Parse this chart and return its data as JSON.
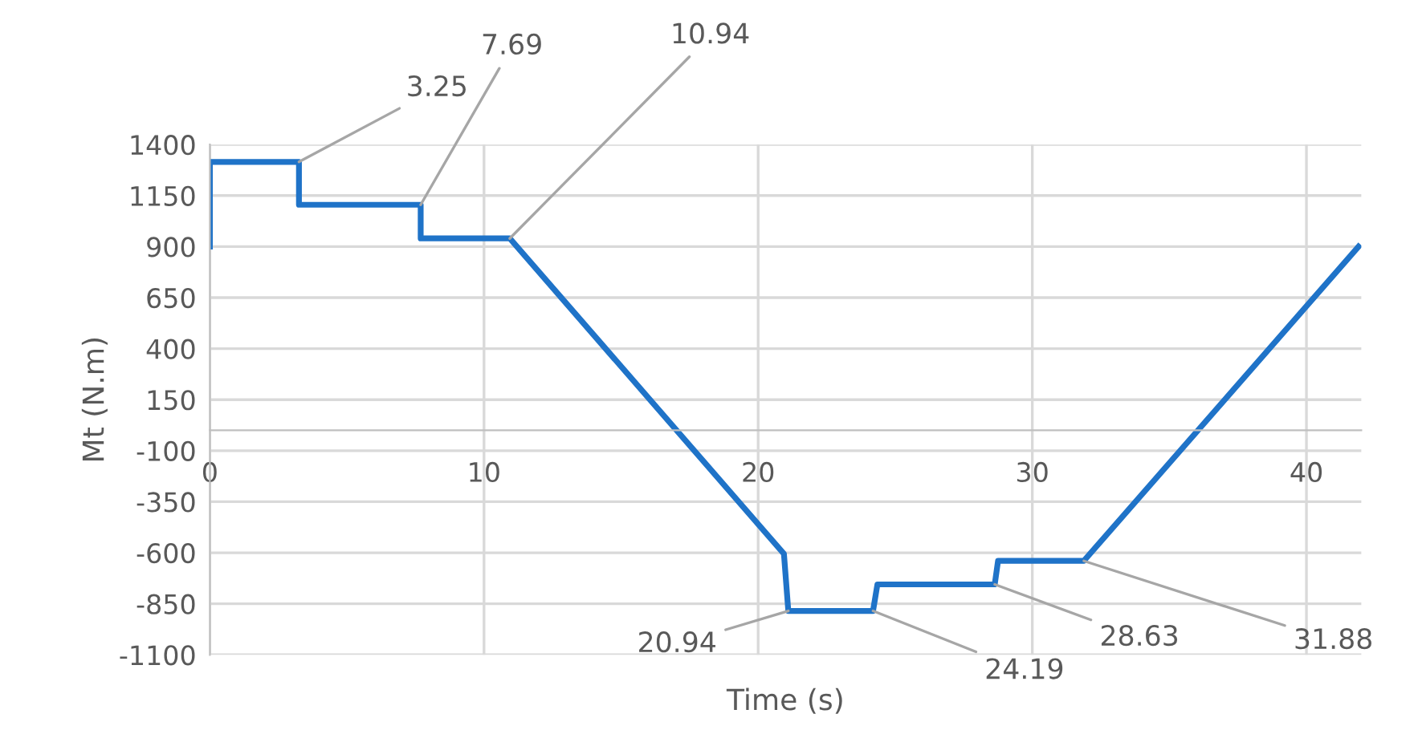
{
  "chart_data": {
    "type": "line",
    "xlabel": "Time (s)",
    "ylabel": "Mt (N.m)",
    "series": [
      {
        "color": "#1f73c8",
        "x": [
          0,
          0,
          3.25,
          3.25,
          7.69,
          7.69,
          10.94,
          20.94,
          21.1,
          24.19,
          24.35,
          28.63,
          28.75,
          31.88,
          41.9
        ],
        "values": [
          900,
          1315,
          1315,
          1105,
          1105,
          940,
          940,
          -605,
          -885,
          -885,
          -755,
          -755,
          -640,
          -640,
          900
        ]
      }
    ],
    "annotations": [
      {
        "text": "3.25",
        "x": 3.25,
        "y": 1315
      },
      {
        "text": "7.69",
        "x": 7.69,
        "y": 1105
      },
      {
        "text": "10.94",
        "x": 10.94,
        "y": 940
      },
      {
        "text": "20.94",
        "x": 21.1,
        "y": -885
      },
      {
        "text": "24.19",
        "x": 24.19,
        "y": -885
      },
      {
        "text": "28.63",
        "x": 28.63,
        "y": -755
      },
      {
        "text": "31.88",
        "x": 31.88,
        "y": -640
      }
    ],
    "xlim": [
      0,
      42
    ],
    "xticks": [
      0,
      10,
      20,
      30,
      40
    ],
    "ylim": [
      -1100,
      1400
    ],
    "yticks": [
      1400,
      1150,
      900,
      650,
      400,
      150,
      -100,
      -350,
      -600,
      -850,
      -1100
    ],
    "grid": true,
    "legend": false,
    "marker": "none",
    "line_style": "solid"
  }
}
